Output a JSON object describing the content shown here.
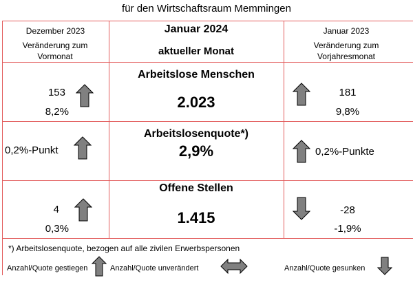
{
  "title": "für den Wirtschaftsraum Memmingen",
  "header": {
    "left_period": "Dezember 2023",
    "left_sub": "Veränderung zum Vormonat",
    "center_period": "Januar 2024",
    "center_sub": "aktueller Monat",
    "right_period": "Januar 2023",
    "right_sub": "Veränderung zum Vorjahresmonat"
  },
  "rows": [
    {
      "label": "Arbeitslose Menschen",
      "value": "2.023",
      "left_abs": "153",
      "left_pct": "8,2%",
      "left_trend": "up",
      "right_abs": "181",
      "right_pct": "9,8%",
      "right_trend": "up"
    },
    {
      "label": "Arbeitslosenquote*)",
      "value": "2,9%",
      "left_text": "0,2%-Punkt",
      "left_trend": "up",
      "right_text": "0,2%-Punkte",
      "right_trend": "up"
    },
    {
      "label": "Offene Stellen",
      "value": "1.415",
      "left_abs": "4",
      "left_pct": "0,3%",
      "left_trend": "up",
      "right_abs": "-28",
      "right_pct": "-1,9%",
      "right_trend": "down"
    }
  ],
  "footnote": "*) Arbeitslosenquote, bezogen auf alle zivilen Erwerbspersonen",
  "legend": {
    "up_label": "Anzahl/Quote gestiegen",
    "same_label": "Anzahl/Quote unverändert",
    "down_label": "Anzahl/Quote gesunken"
  },
  "colors": {
    "border": "#e25a5a",
    "arrow_fill": "#808080",
    "arrow_stroke": "#000000"
  },
  "icons": [
    "arrow-up-icon",
    "arrow-down-icon",
    "arrow-left-right-icon"
  ]
}
